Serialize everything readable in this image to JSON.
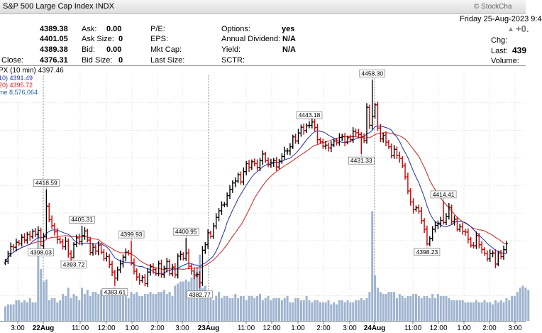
{
  "header": {
    "title": "S&P 500 Large Cap Index  INDX",
    "brand": "© StockCha",
    "date": "Friday  25-Aug-2023  9:4",
    "chg_value": "+0.",
    "last_value": "439",
    "chg_label": "Chg:",
    "last_label": "Last:",
    "volume_label": "Volume:",
    "left_values": [
      "4389.38",
      "4401.05",
      "4389.38",
      "4376.31"
    ],
    "close_label": "Close:",
    "ask_labels": [
      "Ask:",
      "Ask Size:",
      "Bid:",
      "Bid Size:"
    ],
    "ask_values": [
      "0.00",
      "0",
      "0.00",
      "0"
    ],
    "pe_labels": [
      "P/E:",
      "EPS:",
      "Mkt Cap:",
      "Last Size:"
    ],
    "opt_labels": [
      "Options:",
      "Annual Dividend:",
      "Yield:",
      "SCTR:"
    ],
    "opt_values": [
      "yes",
      "N/A",
      "N/A",
      ""
    ]
  },
  "legend": {
    "line1": "PX (10 min) 4397.46",
    "line2": "10) 4391.49",
    "line3": "20) 4395.72",
    "line4": "me 8,576,064"
  },
  "colors": {
    "up": "#000000",
    "down": "#cc0000",
    "ma10": "#1f2fa8",
    "ma20": "#cc1f1f",
    "volume": "#9fb4cf",
    "grid": "#c8c8c8"
  },
  "chart_data": {
    "type": "ohlc",
    "interval": "10 min",
    "ylim": [
      4375,
      4462
    ],
    "x_tick_labels": [
      "3:00",
      "22Aug",
      "11:00",
      "12:00",
      "1:00",
      "2:00",
      "3:00",
      "23Aug",
      "11:00",
      "12:00",
      "1:00",
      "2:00",
      "3:00",
      "24Aug",
      "11:00",
      "12:00",
      "1:00",
      "2:00",
      "3:00"
    ],
    "annotations": [
      {
        "label": "4418.59",
        "bar": 15,
        "value": 4418.59
      },
      {
        "label": "4398.03",
        "bar": 13,
        "value": 4398.03
      },
      {
        "label": "4405.31",
        "bar": 28,
        "value": 4405.31
      },
      {
        "label": "4393.72",
        "bar": 25,
        "value": 4393.72
      },
      {
        "label": "4399.93",
        "bar": 46,
        "value": 4399.93
      },
      {
        "label": "4383.61",
        "bar": 40,
        "value": 4383.61
      },
      {
        "label": "4400.95",
        "bar": 66,
        "value": 4400.95
      },
      {
        "label": "4382.77",
        "bar": 71,
        "value": 4382.77
      },
      {
        "label": "4443.18",
        "bar": 111,
        "value": 4443.18
      },
      {
        "label": "4458.30",
        "bar": 134,
        "value": 4458.3
      },
      {
        "label": "4431.33",
        "bar": 130,
        "value": 4431.33
      },
      {
        "label": "4414.41",
        "bar": 160,
        "value": 4414.41
      },
      {
        "label": "4398.23",
        "bar": 154,
        "value": 4398.23
      }
    ],
    "closes": [
      4392.5,
      4395.2,
      4397.8,
      4397.6,
      4399.4,
      4398.9,
      4401.2,
      4400.2,
      4402.2,
      4401.4,
      4403.4,
      4402.2,
      4403.7,
      4398.2,
      4401.4,
      4412.5,
      4407.6,
      4405.4,
      4403.2,
      4400.4,
      4399.5,
      4397.8,
      4399.8,
      4395.2,
      4393.8,
      4398.6,
      4401.0,
      4399.6,
      4401.8,
      4403.5,
      4400.2,
      4395.7,
      4397.6,
      4396.2,
      4398.4,
      4395.8,
      4393.6,
      4394.2,
      4391.4,
      4388.6,
      4386.4,
      4389.4,
      4391.6,
      4394.0,
      4395.8,
      4395.4,
      4392.0,
      4388.9,
      4386.8,
      4385.5,
      4386.7,
      4384.4,
      4388.6,
      4390.5,
      4389.5,
      4388.0,
      4391.6,
      4387.7,
      4390.0,
      4392.4,
      4388.0,
      4390.4,
      4387.6,
      4394.4,
      4395.0,
      4393.6,
      4395.5,
      4390.7,
      4389.0,
      4387.5,
      4387.7,
      4384.7,
      4396.5,
      4398.5,
      4402.8,
      4401.6,
      4405.3,
      4408.4,
      4410.8,
      4412.9,
      4413.2,
      4416.3,
      4418.6,
      4420.9,
      4421.6,
      4423.9,
      4421.3,
      4425.0,
      4427.9,
      4426.4,
      4428.6,
      4427.9,
      4426.5,
      4429.0,
      4431.4,
      4429.0,
      4427.6,
      4428.1,
      4429.0,
      4426.7,
      4428.8,
      4430.5,
      4432.5,
      4432.5,
      4434.0,
      4437.6,
      4436.1,
      4439.0,
      4441.1,
      4439.9,
      4441.7,
      4441.8,
      4443.0,
      4441.0,
      4436.6,
      4435.8,
      4434.2,
      4434.6,
      4433.6,
      4434.7,
      4436.1,
      4435.5,
      4437.4,
      4437.7,
      4435.7,
      4437.3,
      4436.6,
      4439.6,
      4439.1,
      4438.5,
      4437.7,
      4436.3,
      4448.3,
      4441.8,
      4445.1,
      4449.2,
      4440.8,
      4436.9,
      4438.2,
      4435.7,
      4434.0,
      4430.8,
      4433.1,
      4430.9,
      4429.8,
      4427.1,
      4423.1,
      4418.0,
      4414.0,
      4411.3,
      4411.9,
      4410.7,
      4407.2,
      4404.1,
      4398.8,
      4400.8,
      4404.1,
      4405.5,
      4406.3,
      4407.3,
      4406.6,
      4408.8,
      4412.1,
      4407.0,
      4407.8,
      4404.1,
      4405.0,
      4403.3,
      4403.1,
      4400.5,
      4398.3,
      4398.1,
      4401.8,
      4398.5,
      4396.8,
      4395.3,
      4393.4,
      4395.3,
      4395.5,
      4391.5,
      4395.5,
      4394.2,
      4396.7,
      4398.9
    ]
  },
  "volume": [
    0.07,
    0.08,
    0.08,
    0.08,
    0.1,
    0.1,
    0.09,
    0.1,
    0.09,
    0.11,
    0.09,
    0.09,
    0.43,
    0.25,
    0.19,
    0.2,
    0.1,
    0.11,
    0.11,
    0.09,
    0.1,
    0.13,
    0.12,
    0.16,
    0.11,
    0.13,
    0.12,
    0.1,
    0.16,
    0.13,
    0.15,
    0.12,
    0.14,
    0.14,
    0.13,
    0.15,
    0.13,
    0.13,
    0.14,
    0.13,
    0.13,
    0.13,
    0.14,
    0.12,
    0.13,
    0.11,
    0.14,
    0.13,
    0.14,
    0.12,
    0.12,
    0.13,
    0.13,
    0.14,
    0.13,
    0.13,
    0.14,
    0.14,
    0.15,
    0.13,
    0.14,
    0.12,
    0.17,
    0.18,
    0.19,
    0.19,
    0.2,
    0.19,
    0.21,
    0.24,
    0.26,
    0.32,
    0.16,
    0.17,
    0.13,
    0.13,
    0.1,
    0.12,
    0.14,
    0.11,
    0.12,
    0.12,
    0.11,
    0.11,
    0.13,
    0.11,
    0.12,
    0.12,
    0.1,
    0.12,
    0.12,
    0.11,
    0.12,
    0.13,
    0.1,
    0.11,
    0.12,
    0.1,
    0.11,
    0.11,
    0.11,
    0.1,
    0.11,
    0.12,
    0.09,
    0.09,
    0.11,
    0.11,
    0.1,
    0.1,
    0.12,
    0.1,
    0.09,
    0.1,
    0.1,
    0.09,
    0.09,
    0.09,
    0.1,
    0.08,
    0.09,
    0.08,
    0.1,
    0.1,
    0.09,
    0.1,
    0.09,
    0.09,
    0.1,
    0.1,
    0.11,
    0.1,
    0.11,
    0.14,
    0.53,
    0.22,
    0.16,
    0.14,
    0.13,
    0.13,
    0.14,
    0.14,
    0.14,
    0.11,
    0.13,
    0.12,
    0.11,
    0.12,
    0.12,
    0.13,
    0.13,
    0.12,
    0.11,
    0.12,
    0.12,
    0.11,
    0.13,
    0.11,
    0.13,
    0.12,
    0.12,
    0.12,
    0.11,
    0.1,
    0.1,
    0.1,
    0.1,
    0.1,
    0.09,
    0.09,
    0.09,
    0.09,
    0.1,
    0.09,
    0.09,
    0.1,
    0.09,
    0.09,
    0.08,
    0.1,
    0.09,
    0.1,
    0.09,
    0.11,
    0.1,
    0.12,
    0.12,
    0.14,
    0.16,
    0.17,
    0.16,
    0.15
  ]
}
